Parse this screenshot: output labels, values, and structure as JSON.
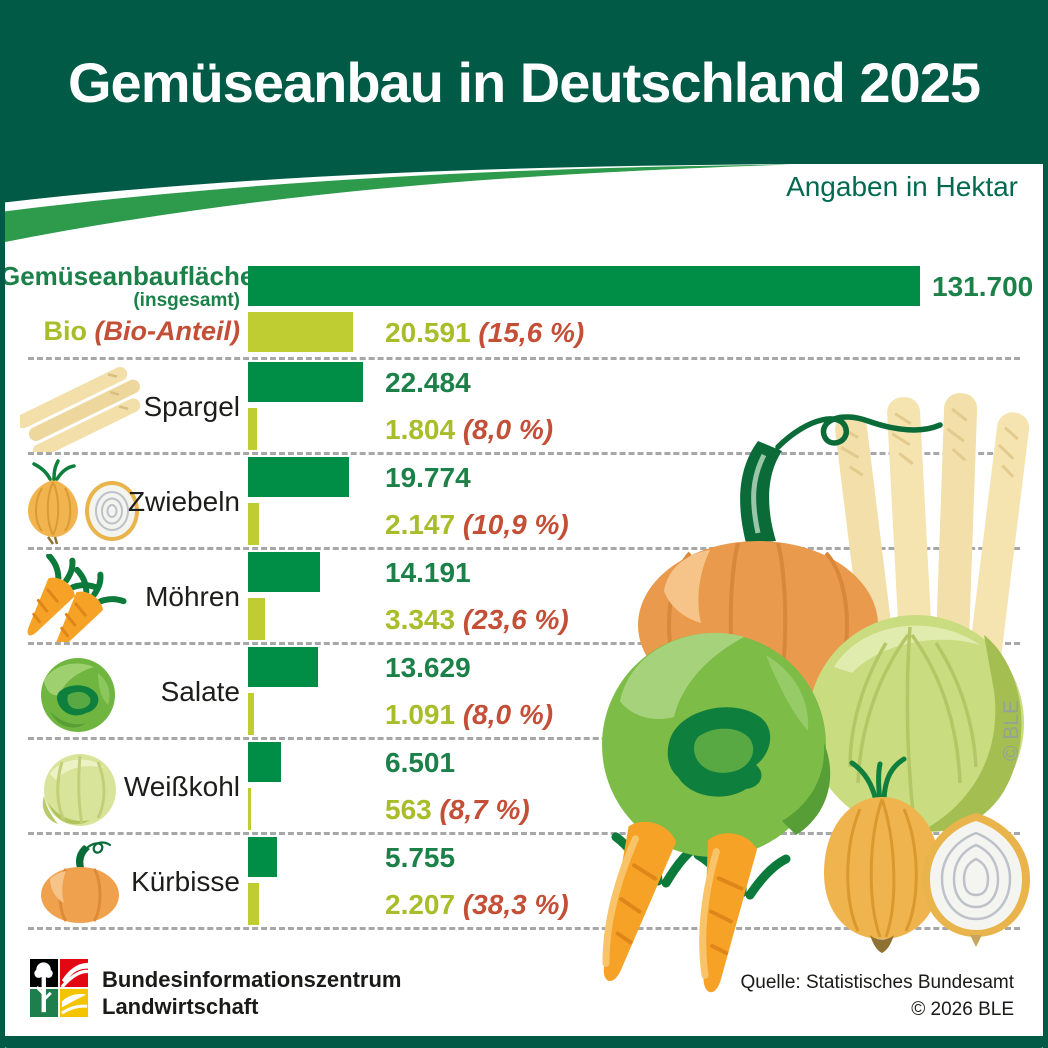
{
  "header": {
    "title": "Gemüseanbau in Deutschland 2025",
    "subtitle": "Angaben in Hektar"
  },
  "chart_data": {
    "type": "bar",
    "orientation": "horizontal",
    "unit": "Hektar",
    "title": "Gemüseanbau in Deutschland 2025",
    "note": "Angaben in Hektar",
    "xmax": 131700,
    "grid": "dashed row separators",
    "total": {
      "label": "Gemüseanbaufläche",
      "sublabel": "(insgesamt)",
      "value": 131700,
      "value_label": "131.700"
    },
    "bio_total": {
      "label": "Bio",
      "sublabel": "(Bio-Anteil)",
      "value": 20591,
      "value_label": "20.591",
      "share_label": "(15,6 %)"
    },
    "rows": [
      {
        "label": "Spargel",
        "icon": "asparagus-icon",
        "area": 22484,
        "area_label": "22.484",
        "bio": 1804,
        "bio_label": "1.804",
        "bio_share_label": "(8,0 %)"
      },
      {
        "label": "Zwiebeln",
        "icon": "onion-icon",
        "area": 19774,
        "area_label": "19.774",
        "bio": 2147,
        "bio_label": "2.147",
        "bio_share_label": "(10,9 %)"
      },
      {
        "label": "Möhren",
        "icon": "carrot-icon",
        "area": 14191,
        "area_label": "14.191",
        "bio": 3343,
        "bio_label": "3.343",
        "bio_share_label": "(23,6 %)"
      },
      {
        "label": "Salate",
        "icon": "lettuce-icon",
        "area": 13629,
        "area_label": "13.629",
        "bio": 1091,
        "bio_label": "1.091",
        "bio_share_label": "(8,0 %)"
      },
      {
        "label": "Weißkohl",
        "icon": "cabbage-icon",
        "area": 6501,
        "area_label": "6.501",
        "bio": 563,
        "bio_label": "563",
        "bio_share_label": "(8,7 %)"
      },
      {
        "label": "Kürbisse",
        "icon": "pumpkin-icon",
        "area": 5755,
        "area_label": "5.755",
        "bio": 2207,
        "bio_label": "2.207",
        "bio_share_label": "(38,3 %)"
      }
    ]
  },
  "watermark": "© BLE",
  "footer": {
    "publisher_line1": "Bundesinformationszentrum",
    "publisher_line2": "Landwirtschaft",
    "source": "Quelle: Statistisches Bundesamt",
    "copyright": "© 2026 BLE"
  },
  "colors": {
    "dark_green": "#005A45",
    "swoosh_green": "#2E9B4C",
    "bar_green": "#008E46",
    "bio_green": "#BFCD33",
    "value_green": "#1B8149",
    "bio_text_green": "#A9BD2A",
    "percent_red": "#C44F37"
  }
}
